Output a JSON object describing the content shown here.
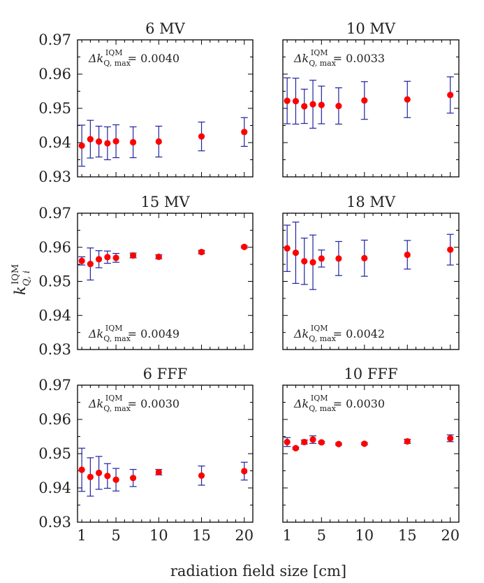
{
  "figure": {
    "ylabel_main": "k",
    "ylabel_sup": "IQM",
    "ylabel_sub": "Q, i",
    "xlabel": "radiation field size [cm]",
    "annot_prefix": "Δk",
    "annot_sup": "IQM",
    "annot_sub": "Q, max",
    "annot_eq": "=",
    "yticks": [
      "0.93",
      "0.94",
      "0.95",
      "0.96",
      "0.97"
    ],
    "xticks": [
      "1",
      "5",
      "10",
      "15",
      "20"
    ]
  },
  "chart_data": [
    {
      "type": "scatter",
      "title": "6 MV",
      "annotation": "0.0040",
      "annotation_position": "top-left",
      "xlim": [
        0.5,
        21
      ],
      "ylim": [
        0.93,
        0.97
      ],
      "x": [
        1,
        2,
        3,
        4,
        5,
        7,
        10,
        15,
        20
      ],
      "y": [
        0.9391,
        0.941,
        0.9403,
        0.9398,
        0.9404,
        0.9401,
        0.9403,
        0.9418,
        0.9431
      ],
      "err": [
        0.006,
        0.0055,
        0.0045,
        0.0048,
        0.0048,
        0.0045,
        0.0045,
        0.0042,
        0.0042
      ],
      "marker_color": "#ff0000",
      "errorbar_color": "#1e22a0"
    },
    {
      "type": "scatter",
      "title": "10 MV",
      "annotation": "0.0033",
      "annotation_position": "top-left",
      "xlim": [
        0.5,
        21
      ],
      "ylim": [
        0.93,
        0.97
      ],
      "x": [
        1,
        2,
        3,
        4,
        5,
        7,
        10,
        15,
        20
      ],
      "y": [
        0.9522,
        0.9521,
        0.9506,
        0.9512,
        0.951,
        0.9507,
        0.9523,
        0.9526,
        0.9539
      ],
      "err": [
        0.0067,
        0.0067,
        0.005,
        0.007,
        0.0055,
        0.0053,
        0.0055,
        0.0053,
        0.0053
      ],
      "marker_color": "#ff0000",
      "errorbar_color": "#1e22a0"
    },
    {
      "type": "scatter",
      "title": "15 MV",
      "annotation": "0.0049",
      "annotation_position": "bottom-left",
      "xlim": [
        0.5,
        21
      ],
      "ylim": [
        0.93,
        0.97
      ],
      "x": [
        1,
        2,
        3,
        4,
        5,
        7,
        10,
        15,
        20
      ],
      "y": [
        0.956,
        0.9551,
        0.9565,
        0.9571,
        0.9569,
        0.9576,
        0.9572,
        0.9586,
        0.9601
      ],
      "err": [
        0.0012,
        0.0047,
        0.0025,
        0.0018,
        0.0013,
        0.0007,
        0.0006,
        0.0005,
        0.0003
      ],
      "marker_color": "#ff0000",
      "errorbar_color": "#1e22a0"
    },
    {
      "type": "scatter",
      "title": "18 MV",
      "annotation": "0.0042",
      "annotation_position": "bottom-left",
      "xlim": [
        0.5,
        21
      ],
      "ylim": [
        0.93,
        0.97
      ],
      "x": [
        1,
        2,
        3,
        4,
        5,
        7,
        10,
        15,
        20
      ],
      "y": [
        0.9597,
        0.9584,
        0.9559,
        0.9556,
        0.9567,
        0.9567,
        0.9568,
        0.9578,
        0.9593
      ],
      "err": [
        0.0068,
        0.009,
        0.0068,
        0.008,
        0.0025,
        0.005,
        0.0053,
        0.0042,
        0.0045
      ],
      "marker_color": "#ff0000",
      "errorbar_color": "#1e22a0"
    },
    {
      "type": "scatter",
      "title": "6 FFF",
      "annotation": "0.0030",
      "annotation_position": "top-left",
      "xlim": [
        0.5,
        21
      ],
      "ylim": [
        0.93,
        0.97
      ],
      "x": [
        1,
        2,
        3,
        4,
        5,
        7,
        10,
        15,
        20
      ],
      "y": [
        0.9453,
        0.9432,
        0.9444,
        0.9435,
        0.9424,
        0.9429,
        0.9446,
        0.9436,
        0.9449
      ],
      "err": [
        0.0063,
        0.0056,
        0.0048,
        0.0036,
        0.0033,
        0.0025,
        0.0008,
        0.0028,
        0.0026
      ],
      "marker_color": "#ff0000",
      "errorbar_color": "#1e22a0"
    },
    {
      "type": "scatter",
      "title": "10 FFF",
      "annotation": "0.0030",
      "annotation_position": "top-left",
      "xlim": [
        0.5,
        21
      ],
      "ylim": [
        0.93,
        0.97
      ],
      "x": [
        1,
        2,
        3,
        4,
        5,
        7,
        10,
        15,
        20
      ],
      "y": [
        0.9534,
        0.9516,
        0.9534,
        0.9541,
        0.9533,
        0.9528,
        0.9529,
        0.9536,
        0.9545
      ],
      "err": [
        0.0013,
        0.0003,
        0.0006,
        0.0011,
        0.0003,
        0.0003,
        0.0003,
        0.0006,
        0.001
      ],
      "marker_color": "#ff0000",
      "errorbar_color": "#1e22a0"
    }
  ]
}
